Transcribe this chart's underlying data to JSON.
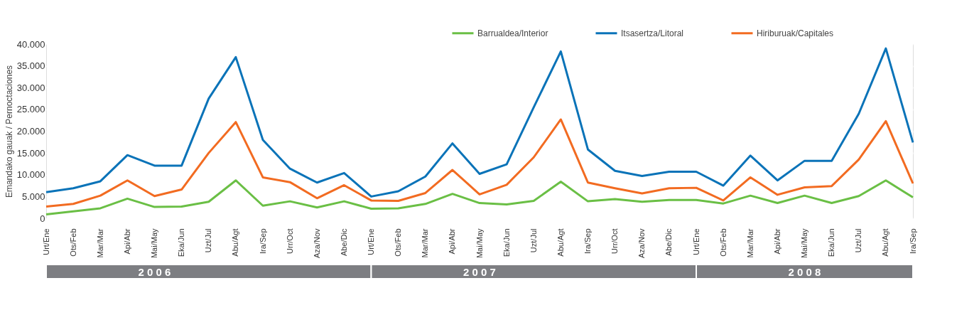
{
  "chart_data": {
    "type": "line",
    "ylabel": "Emandako gauak / Pernoctaciones",
    "categories": [
      "Urt/Ene",
      "Ots/Feb",
      "Mar/Mar",
      "Api/Abr",
      "Mai/May",
      "Eka/Jun",
      "Uzt/Jul",
      "Abu/Agt",
      "Ira/Sep",
      "Urr/Oct",
      "Aza/Nov",
      "Abe/Dic",
      "Urt/Ene",
      "Ots/Feb",
      "Mar/Mar",
      "Api/Abr",
      "Mai/May",
      "Eka/Jun",
      "Uzt/Jul",
      "Abu/Agt",
      "Ira/Sep",
      "Urr/Oct",
      "Aza/Nov",
      "Abe/Dic",
      "Urt/Ene",
      "Ots/Feb",
      "Mar/Mar",
      "Api/Abr",
      "Mai/May",
      "Eka/Jun",
      "Uzt/Jul",
      "Abu/Agt",
      "Ira/Sep"
    ],
    "series": [
      {
        "name": "Barrualdea/Interior",
        "color": "#6abf45",
        "values": [
          900,
          1600,
          2300,
          4500,
          2600,
          2700,
          3800,
          8700,
          2900,
          3900,
          2500,
          3900,
          2200,
          2300,
          3300,
          5600,
          3500,
          3200,
          4000,
          8400,
          3900,
          4400,
          3800,
          4200,
          4200,
          3400,
          5200,
          3500,
          5200,
          3500,
          5100,
          8700,
          4800
        ]
      },
      {
        "name": "Itsasertza/Litoral",
        "color": "#0a73b8",
        "values": [
          6000,
          6900,
          8500,
          14500,
          12100,
          12100,
          27500,
          37000,
          18000,
          11400,
          8200,
          10400,
          5000,
          6200,
          9600,
          17200,
          10200,
          12400,
          25500,
          38300,
          15800,
          10900,
          9700,
          10700,
          10700,
          7500,
          14400,
          8700,
          13200,
          13200,
          24000,
          39000,
          17400
        ]
      },
      {
        "name": "Hiriburuak/Capitales",
        "color": "#f26b21",
        "values": [
          2700,
          3300,
          5200,
          8700,
          5100,
          6600,
          15000,
          22100,
          9400,
          8300,
          4600,
          7600,
          4100,
          4000,
          5800,
          11100,
          5500,
          7700,
          14000,
          22700,
          8200,
          6900,
          5700,
          6900,
          7000,
          4100,
          9400,
          5400,
          7100,
          7400,
          13500,
          22300,
          8000
        ]
      }
    ],
    "ylim": [
      0,
      40000
    ],
    "yticks": [
      0,
      {
        "value": 5000,
        "label": "5.000"
      },
      {
        "value": 10000,
        "label": "10.000"
      },
      {
        "value": 15000,
        "label": "15.000"
      },
      {
        "value": 20000,
        "label": "20.000"
      },
      {
        "value": 25000,
        "label": "25.000"
      },
      {
        "value": 30000,
        "label": "30.000"
      },
      {
        "value": 35000,
        "label": "35.000"
      },
      {
        "value": 40000,
        "label": "40.000"
      }
    ],
    "grid": "y",
    "legend": "top right",
    "marker": "none",
    "line_style": "solid",
    "annotations": [
      "2 0 0 6",
      "2 0 0 7",
      "2 0 0 8"
    ]
  }
}
